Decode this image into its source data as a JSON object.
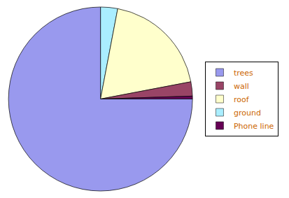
{
  "chart_data": {
    "type": "pie",
    "categories": [
      "ground",
      "roof",
      "wall",
      "Phone line",
      "trees"
    ],
    "values": [
      3.0,
      19.0,
      2.5,
      0.5,
      75.0
    ],
    "colors": [
      "#aaeeff",
      "#ffffcc",
      "#994466",
      "#660055",
      "#9999ee"
    ],
    "series": [
      {
        "name": "trees",
        "color": "#9999ee"
      },
      {
        "name": "wall",
        "color": "#994466"
      },
      {
        "name": "roof",
        "color": "#ffffcc"
      },
      {
        "name": "ground",
        "color": "#aaeeff"
      },
      {
        "name": "Phone line",
        "color": "#660055"
      }
    ],
    "legend": "right"
  }
}
